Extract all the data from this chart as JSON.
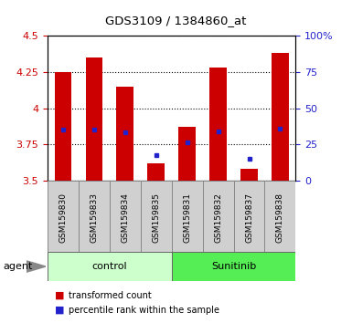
{
  "title": "GDS3109 / 1384860_at",
  "samples": [
    "GSM159830",
    "GSM159833",
    "GSM159834",
    "GSM159835",
    "GSM159831",
    "GSM159832",
    "GSM159837",
    "GSM159838"
  ],
  "bar_tops": [
    4.25,
    4.35,
    4.15,
    3.62,
    3.87,
    4.28,
    3.58,
    4.38
  ],
  "bar_bottom": 3.5,
  "blue_dots": [
    3.855,
    3.855,
    3.835,
    3.68,
    3.765,
    3.84,
    3.655,
    3.86
  ],
  "ylim": [
    3.5,
    4.5
  ],
  "yticks": [
    3.5,
    3.75,
    4.0,
    4.25,
    4.5
  ],
  "ytick_labels": [
    "3.5",
    "3.75",
    "4",
    "4.25",
    "4.5"
  ],
  "right_ytick_vals": [
    3.5,
    3.75,
    4.0,
    4.25,
    4.5
  ],
  "right_ytick_labels": [
    "0",
    "25",
    "50",
    "75",
    "100%"
  ],
  "bar_color": "#cc0000",
  "dot_color": "#2222cc",
  "bar_width": 0.55,
  "tick_color_left": "#cc0000",
  "tick_color_right": "#2222cc",
  "control_color": "#ccffcc",
  "sunitinib_color": "#55ee55",
  "sample_bg_color": "#d0d0d0",
  "agent_label": "agent",
  "legend_red": "transformed count",
  "legend_blue": "percentile rank within the sample",
  "group_defs": [
    {
      "label": "control",
      "start": 0,
      "end": 3,
      "color": "#ccffcc"
    },
    {
      "label": "Sunitinib",
      "start": 4,
      "end": 7,
      "color": "#55ee55"
    }
  ]
}
